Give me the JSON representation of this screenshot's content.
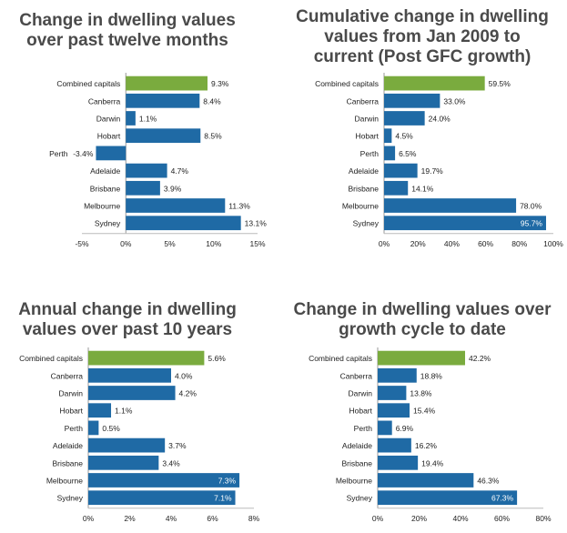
{
  "chart_data": [
    {
      "type": "bar",
      "orientation": "horizontal",
      "title_lines": [
        "Change in dwelling values",
        "over past twelve months"
      ],
      "categories": [
        "Combined capitals",
        "Canberra",
        "Darwin",
        "Hobart",
        "Perth",
        "Adelaide",
        "Brisbane",
        "Melbourne",
        "Sydney"
      ],
      "values": [
        9.3,
        8.4,
        1.1,
        8.5,
        -3.4,
        4.7,
        3.9,
        11.3,
        13.1
      ],
      "value_labels": [
        "9.3%",
        "8.4%",
        "1.1%",
        "8.5%",
        "-3.4%",
        "4.7%",
        "3.9%",
        "11.3%",
        "13.1%"
      ],
      "xlim": [
        -5,
        15
      ],
      "xticks": [
        -5,
        0,
        5,
        10,
        15
      ],
      "xtick_labels": [
        "-5%",
        "0%",
        "5%",
        "10%",
        "15%"
      ],
      "colors": [
        "#7aab3e",
        "#1f6aa5",
        "#1f6aa5",
        "#1f6aa5",
        "#1f6aa5",
        "#1f6aa5",
        "#1f6aa5",
        "#1f6aa5",
        "#1f6aa5"
      ]
    },
    {
      "type": "bar",
      "orientation": "horizontal",
      "title_lines": [
        "Cumulative change in dwelling",
        "values from Jan 2009 to",
        "current (Post GFC growth)"
      ],
      "categories": [
        "Combined capitals",
        "Canberra",
        "Darwin",
        "Hobart",
        "Perth",
        "Adelaide",
        "Brisbane",
        "Melbourne",
        "Sydney"
      ],
      "values": [
        59.5,
        33.0,
        24.0,
        4.5,
        6.5,
        19.7,
        14.1,
        78.0,
        95.7
      ],
      "value_labels": [
        "59.5%",
        "33.0%",
        "24.0%",
        "4.5%",
        "6.5%",
        "19.7%",
        "14.1%",
        "78.0%",
        "95.7%"
      ],
      "xlim": [
        0,
        100
      ],
      "xticks": [
        0,
        20,
        40,
        60,
        80,
        100
      ],
      "xtick_labels": [
        "0%",
        "20%",
        "40%",
        "60%",
        "80%",
        "100%"
      ],
      "colors": [
        "#7aab3e",
        "#1f6aa5",
        "#1f6aa5",
        "#1f6aa5",
        "#1f6aa5",
        "#1f6aa5",
        "#1f6aa5",
        "#1f6aa5",
        "#1f6aa5"
      ]
    },
    {
      "type": "bar",
      "orientation": "horizontal",
      "title_lines": [
        "Annual change in dwelling",
        "values over past 10 years"
      ],
      "categories": [
        "Combined capitals",
        "Canberra",
        "Darwin",
        "Hobart",
        "Perth",
        "Adelaide",
        "Brisbane",
        "Melbourne",
        "Sydney"
      ],
      "values": [
        5.6,
        4.0,
        4.2,
        1.1,
        0.5,
        3.7,
        3.4,
        7.3,
        7.1
      ],
      "value_labels": [
        "5.6%",
        "4.0%",
        "4.2%",
        "1.1%",
        "0.5%",
        "3.7%",
        "3.4%",
        "7.3%",
        "7.1%"
      ],
      "xlim": [
        0,
        8
      ],
      "xticks": [
        0,
        2,
        4,
        6,
        8
      ],
      "xtick_labels": [
        "0%",
        "2%",
        "4%",
        "6%",
        "8%"
      ],
      "colors": [
        "#7aab3e",
        "#1f6aa5",
        "#1f6aa5",
        "#1f6aa5",
        "#1f6aa5",
        "#1f6aa5",
        "#1f6aa5",
        "#1f6aa5",
        "#1f6aa5"
      ]
    },
    {
      "type": "bar",
      "orientation": "horizontal",
      "title_lines": [
        "Change in dwelling values over",
        "growth cycle to date"
      ],
      "categories": [
        "Combined capitals",
        "Canberra",
        "Darwin",
        "Hobart",
        "Perth",
        "Adelaide",
        "Brisbane",
        "Melbourne",
        "Sydney"
      ],
      "values": [
        42.2,
        18.8,
        13.8,
        15.4,
        6.9,
        16.2,
        19.4,
        46.3,
        67.3
      ],
      "value_labels": [
        "42.2%",
        "18.8%",
        "13.8%",
        "15.4%",
        "6.9%",
        "16.2%",
        "19.4%",
        "46.3%",
        "67.3%"
      ],
      "xlim": [
        0,
        80
      ],
      "xticks": [
        0,
        20,
        40,
        60,
        80
      ],
      "xtick_labels": [
        "0%",
        "20%",
        "40%",
        "60%",
        "80%"
      ],
      "colors": [
        "#7aab3e",
        "#1f6aa5",
        "#1f6aa5",
        "#1f6aa5",
        "#1f6aa5",
        "#1f6aa5",
        "#1f6aa5",
        "#1f6aa5",
        "#1f6aa5"
      ]
    }
  ]
}
